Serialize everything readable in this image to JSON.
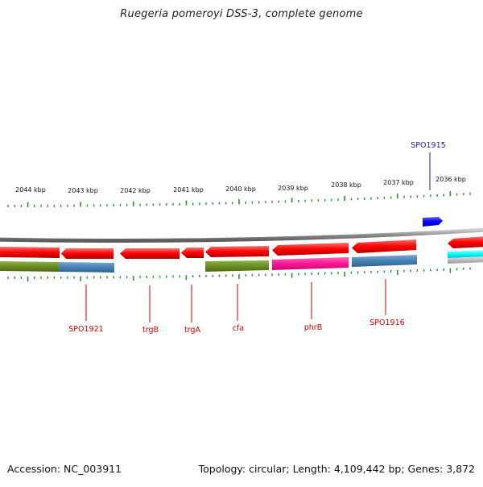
{
  "title": "Ruegeria pomeroyi DSS-3, complete genome",
  "accession": "Accession: NC_003911",
  "summary": "Topology: circular; Length: 4,109,442 bp; Genes: 3,872",
  "colors": {
    "backbone": "#8a8a8a",
    "gene_forward": "#ff0000",
    "gene_reverse": "#ff0000",
    "highlight_gene": "#0000ff",
    "tick": "#2f8f2f",
    "label_red": "#cc0000",
    "label_blue": "#1a1aaa",
    "cog_olive": "#6b8e23",
    "cog_steel": "#4682b4",
    "cog_magenta": "#ff1493",
    "cog_cyan": "#00ffff",
    "cog_grey": "#bdbdbd"
  },
  "scale_labels": [
    "2044 kbp",
    "2043 kbp",
    "2042 kbp",
    "2041 kbp",
    "2040 kbp",
    "2039 kbp",
    "2038 kbp",
    "2037 kbp",
    "2036 kbp"
  ],
  "gene_labels": [
    {
      "id": "spo1921",
      "text": "SPO1921",
      "color": "red"
    },
    {
      "id": "trgb",
      "text": "trgB",
      "color": "red"
    },
    {
      "id": "trga",
      "text": "trgA",
      "color": "red"
    },
    {
      "id": "cfa",
      "text": "cfa",
      "color": "red"
    },
    {
      "id": "phrb",
      "text": "phrB",
      "color": "red"
    },
    {
      "id": "spo1916",
      "text": "SPO1916",
      "color": "red"
    },
    {
      "id": "spo1915",
      "text": "SPO1915",
      "color": "blue"
    }
  ]
}
